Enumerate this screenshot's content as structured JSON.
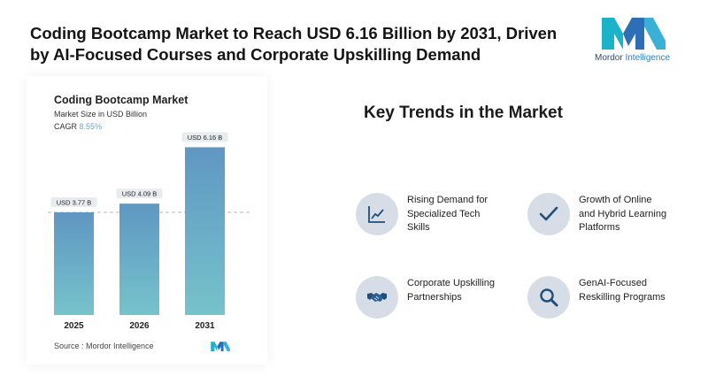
{
  "headline": {
    "line1": "Coding Bootcamp Market to Reach USD 6.16 Billion by 2031, Driven",
    "line2": "by AI-Focused Courses and Corporate Upskilling Demand"
  },
  "logo": {
    "brand": "Mordor",
    "suffix": "Intelligence",
    "colors": [
      "#1bb3c9",
      "#2c6fb7",
      "#3ab0d6"
    ]
  },
  "chart": {
    "title": "Coding Bootcamp Market",
    "subtitle": "Market Size in USD Billion",
    "cagr_label": "CAGR",
    "cagr_value": "8.55%",
    "source": "Source : Mordor Intelligence"
  },
  "chart_data": {
    "type": "bar",
    "categories": [
      "2025",
      "2026",
      "2031"
    ],
    "values": [
      3.77,
      4.09,
      6.16
    ],
    "data_labels": [
      "USD 3.77 B",
      "USD 4.09 B",
      "USD 6.16 B"
    ],
    "title": "Coding Bootcamp Market",
    "subtitle": "Market Size in USD Billion",
    "xlabel": "",
    "ylabel": "",
    "ylim": [
      0,
      6.5
    ],
    "reference_line_value": 3.77,
    "bar_color_top": "#5f97c2",
    "bar_color_bottom": "#76c3cb",
    "grid": false,
    "legend": "none"
  },
  "trends": {
    "title": "Key Trends in the Market",
    "items": [
      {
        "icon": "line-chart-icon",
        "lines": [
          "Rising Demand for",
          "Specialized Tech",
          "Skills"
        ]
      },
      {
        "icon": "checkmark-icon",
        "lines": [
          "Growth of Online",
          "and Hybrid Learning",
          "Platforms"
        ]
      },
      {
        "icon": "handshake-icon",
        "lines": [
          "Corporate Upskilling",
          "Partnerships"
        ]
      },
      {
        "icon": "magnifier-icon",
        "lines": [
          "GenAI-Focused",
          "Reskilling Programs"
        ]
      }
    ]
  },
  "colors": {
    "icon_bg": "#d6dde6",
    "icon_fg": "#1f4e79",
    "accent": "#6ba6c8"
  }
}
